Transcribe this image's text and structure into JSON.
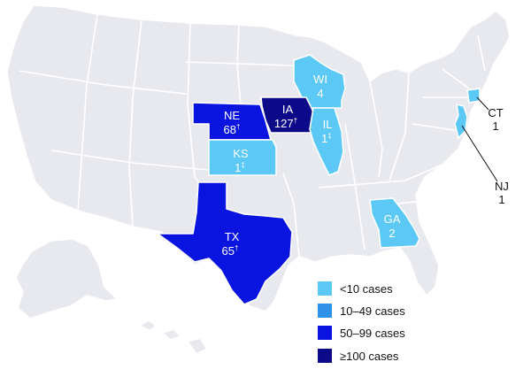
{
  "colors": {
    "lt10": "#5bc8f5",
    "c10_49": "#2e93e8",
    "c50_99": "#0a14e0",
    "ge100": "#0d0a8a",
    "base": "#e8e9ef"
  },
  "states": [
    {
      "abbr": "WI",
      "count": "4",
      "mark": "",
      "category": "lt10"
    },
    {
      "abbr": "IA",
      "count": "127",
      "mark": "†",
      "category": "ge100"
    },
    {
      "abbr": "NE",
      "count": "68",
      "mark": "†",
      "category": "c50_99"
    },
    {
      "abbr": "IL",
      "count": "1",
      "mark": "‡",
      "category": "lt10"
    },
    {
      "abbr": "KS",
      "count": "1",
      "mark": "‡",
      "category": "lt10"
    },
    {
      "abbr": "TX",
      "count": "65",
      "mark": "†",
      "category": "c50_99"
    },
    {
      "abbr": "GA",
      "count": "2",
      "mark": "",
      "category": "lt10"
    },
    {
      "abbr": "CT",
      "count": "1",
      "mark": "",
      "category": "lt10"
    },
    {
      "abbr": "NJ",
      "count": "1",
      "mark": "",
      "category": "lt10"
    }
  ],
  "legend": [
    {
      "label": "<10 cases",
      "category": "lt10"
    },
    {
      "label": "10–49 cases",
      "category": "c10_49"
    },
    {
      "label": "50–99 cases",
      "category": "c50_99"
    },
    {
      "label": "≥100 cases",
      "category": "ge100"
    }
  ]
}
